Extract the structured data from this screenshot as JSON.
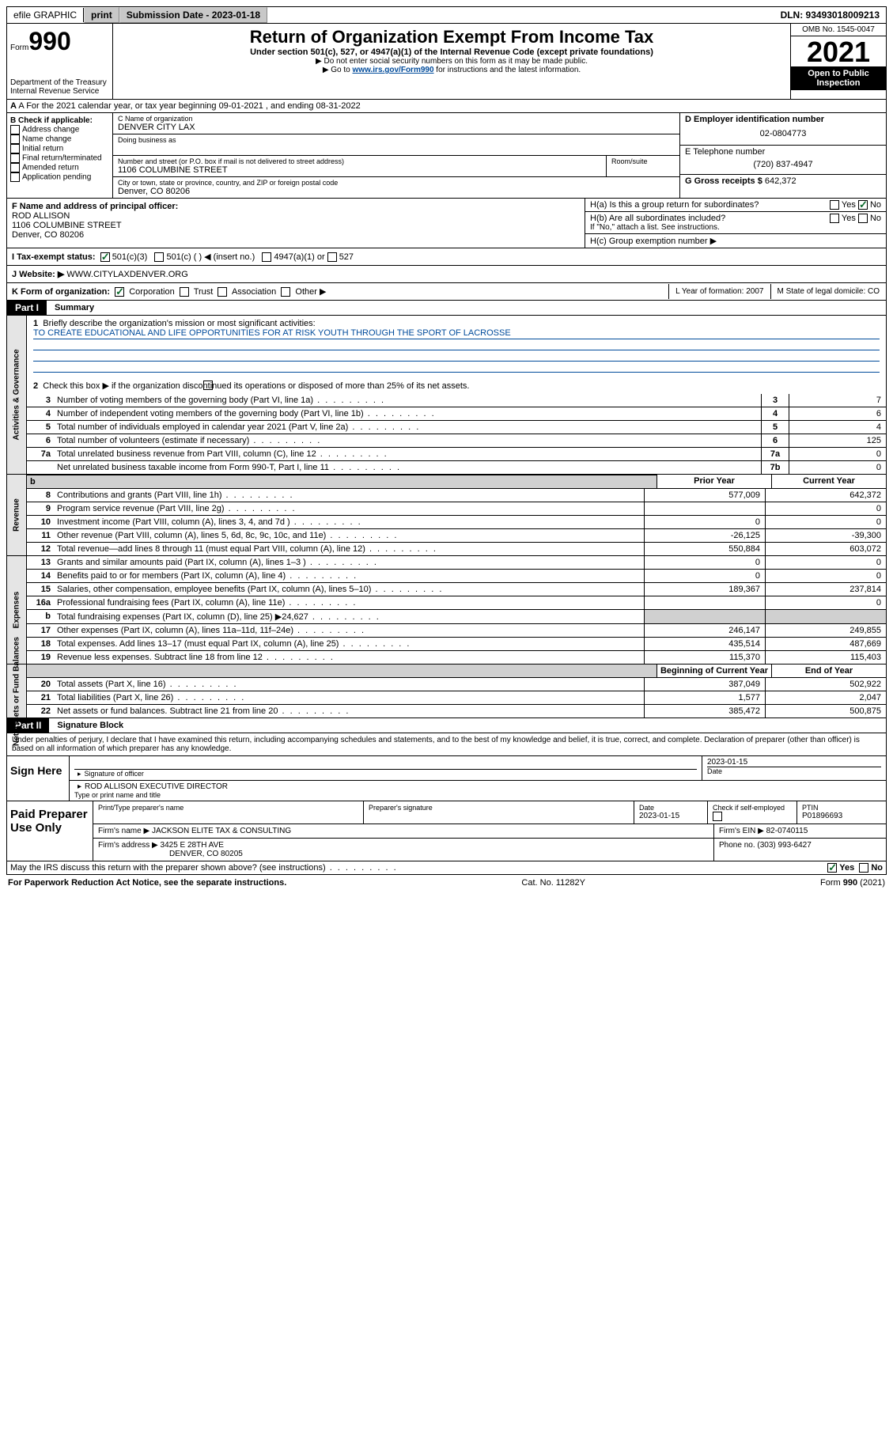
{
  "topbar": {
    "efile": "efile GRAPHIC",
    "print": "print",
    "submission": "Submission Date - 2023-01-18",
    "dln": "DLN: 93493018009213"
  },
  "header": {
    "form_prefix": "Form",
    "form_num": "990",
    "dept": "Department of the Treasury Internal Revenue Service",
    "title": "Return of Organization Exempt From Income Tax",
    "sub": "Under section 501(c), 527, or 4947(a)(1) of the Internal Revenue Code (except private foundations)",
    "note1": "▶ Do not enter social security numbers on this form as it may be made public.",
    "note2_pre": "▶ Go to ",
    "note2_link": "www.irs.gov/Form990",
    "note2_post": " for instructions and the latest information.",
    "omb": "OMB No. 1545-0047",
    "year": "2021",
    "open": "Open to Public Inspection"
  },
  "rowA": "A For the 2021 calendar year, or tax year beginning 09-01-2021   , and ending 08-31-2022",
  "boxB": {
    "title": "B Check if applicable:",
    "items": [
      "Address change",
      "Name change",
      "Initial return",
      "Final return/terminated",
      "Amended return",
      "Application pending"
    ]
  },
  "boxC": {
    "name_label": "C Name of organization",
    "name": "DENVER CITY LAX",
    "dba_label": "Doing business as",
    "addr_label": "Number and street (or P.O. box if mail is not delivered to street address)",
    "room_label": "Room/suite",
    "addr": "1106 COLUMBINE STREET",
    "city_label": "City or town, state or province, country, and ZIP or foreign postal code",
    "city": "Denver, CO  80206"
  },
  "boxD": {
    "label": "D Employer identification number",
    "value": "02-0804773"
  },
  "boxE": {
    "label": "E Telephone number",
    "value": "(720) 837-4947"
  },
  "boxG": {
    "label": "G Gross receipts $",
    "value": "642,372"
  },
  "boxF": {
    "label": "F Name and address of principal officer:",
    "name": "ROD ALLISON",
    "addr1": "1106 COLUMBINE STREET",
    "addr2": "Denver, CO  80206"
  },
  "boxH": {
    "a": "H(a)  Is this a group return for subordinates?",
    "b": "H(b)  Are all subordinates included?",
    "note": "If \"No,\" attach a list. See instructions.",
    "c": "H(c)  Group exemption number ▶"
  },
  "taxI": {
    "label": "I   Tax-exempt status:",
    "o1": "501(c)(3)",
    "o2": "501(c) (  ) ◀ (insert no.)",
    "o3": "4947(a)(1) or",
    "o4": "527"
  },
  "webJ": {
    "label": "J   Website: ▶",
    "value": "WWW.CITYLAXDENVER.ORG"
  },
  "rowK": {
    "label": "K Form of organization:",
    "o1": "Corporation",
    "o2": "Trust",
    "o3": "Association",
    "o4": "Other ▶",
    "L": "L Year of formation: 2007",
    "M": "M State of legal domicile: CO"
  },
  "part1": {
    "bar": "Part I",
    "title": "Summary",
    "q1": "Briefly describe the organization's mission or most significant activities:",
    "mission": "TO CREATE EDUCATIONAL AND LIFE OPPORTUNITIES FOR AT RISK YOUTH THROUGH THE SPORT OF LACROSSE",
    "q2": "Check this box ▶        if the organization discontinued its operations or disposed of more than 25% of its net assets."
  },
  "gov_lines": [
    {
      "n": "3",
      "t": "Number of voting members of the governing body (Part VI, line 1a)",
      "b": "3",
      "v": "7"
    },
    {
      "n": "4",
      "t": "Number of independent voting members of the governing body (Part VI, line 1b)",
      "b": "4",
      "v": "6"
    },
    {
      "n": "5",
      "t": "Total number of individuals employed in calendar year 2021 (Part V, line 2a)",
      "b": "5",
      "v": "4"
    },
    {
      "n": "6",
      "t": "Total number of volunteers (estimate if necessary)",
      "b": "6",
      "v": "125"
    },
    {
      "n": "7a",
      "t": "Total unrelated business revenue from Part VIII, column (C), line 12",
      "b": "7a",
      "v": "0"
    },
    {
      "n": "",
      "t": "Net unrelated business taxable income from Form 990-T, Part I, line 11",
      "b": "7b",
      "v": "0"
    }
  ],
  "rev_hdr": {
    "prior": "Prior Year",
    "curr": "Current Year"
  },
  "rev_lines": [
    {
      "n": "8",
      "t": "Contributions and grants (Part VIII, line 1h)",
      "p": "577,009",
      "c": "642,372"
    },
    {
      "n": "9",
      "t": "Program service revenue (Part VIII, line 2g)",
      "p": "",
      "c": "0"
    },
    {
      "n": "10",
      "t": "Investment income (Part VIII, column (A), lines 3, 4, and 7d )",
      "p": "0",
      "c": "0"
    },
    {
      "n": "11",
      "t": "Other revenue (Part VIII, column (A), lines 5, 6d, 8c, 9c, 10c, and 11e)",
      "p": "-26,125",
      "c": "-39,300"
    },
    {
      "n": "12",
      "t": "Total revenue—add lines 8 through 11 (must equal Part VIII, column (A), line 12)",
      "p": "550,884",
      "c": "603,072"
    }
  ],
  "exp_lines": [
    {
      "n": "13",
      "t": "Grants and similar amounts paid (Part IX, column (A), lines 1–3 )",
      "p": "0",
      "c": "0"
    },
    {
      "n": "14",
      "t": "Benefits paid to or for members (Part IX, column (A), line 4)",
      "p": "0",
      "c": "0"
    },
    {
      "n": "15",
      "t": "Salaries, other compensation, employee benefits (Part IX, column (A), lines 5–10)",
      "p": "189,367",
      "c": "237,814"
    },
    {
      "n": "16a",
      "t": "Professional fundraising fees (Part IX, column (A), line 11e)",
      "p": "",
      "c": "0"
    },
    {
      "n": "b",
      "t": "Total fundraising expenses (Part IX, column (D), line 25) ▶24,627",
      "p": "grey",
      "c": "grey"
    },
    {
      "n": "17",
      "t": "Other expenses (Part IX, column (A), lines 11a–11d, 11f–24e)",
      "p": "246,147",
      "c": "249,855"
    },
    {
      "n": "18",
      "t": "Total expenses. Add lines 13–17 (must equal Part IX, column (A), line 25)",
      "p": "435,514",
      "c": "487,669"
    },
    {
      "n": "19",
      "t": "Revenue less expenses. Subtract line 18 from line 12",
      "p": "115,370",
      "c": "115,403"
    }
  ],
  "net_hdr": {
    "prior": "Beginning of Current Year",
    "curr": "End of Year"
  },
  "net_lines": [
    {
      "n": "20",
      "t": "Total assets (Part X, line 16)",
      "p": "387,049",
      "c": "502,922"
    },
    {
      "n": "21",
      "t": "Total liabilities (Part X, line 26)",
      "p": "1,577",
      "c": "2,047"
    },
    {
      "n": "22",
      "t": "Net assets or fund balances. Subtract line 21 from line 20",
      "p": "385,472",
      "c": "500,875"
    }
  ],
  "part2": {
    "bar": "Part II",
    "title": "Signature Block",
    "decl": "Under penalties of perjury, I declare that I have examined this return, including accompanying schedules and statements, and to the best of my knowledge and belief, it is true, correct, and complete. Declaration of preparer (other than officer) is based on all information of which preparer has any knowledge."
  },
  "sign": {
    "here": "Sign Here",
    "sig_label": "Signature of officer",
    "date_label": "Date",
    "date": "2023-01-15",
    "name_label": "Type or print name and title",
    "name": "ROD ALLISON  EXECUTIVE DIRECTOR"
  },
  "prep": {
    "title": "Paid Preparer Use Only",
    "h1": "Print/Type preparer's name",
    "h2": "Preparer's signature",
    "h3": "Date",
    "date": "2023-01-15",
    "h4": "Check        if self-employed",
    "h5": "PTIN",
    "ptin": "P01896693",
    "firm_label": "Firm's name     ▶",
    "firm": "JACKSON ELITE TAX & CONSULTING",
    "ein_label": "Firm's EIN ▶",
    "ein": "82-0740115",
    "addr_label": "Firm's address ▶",
    "addr1": "3425 E 28TH AVE",
    "addr2": "DENVER, CO  80205",
    "phone_label": "Phone no.",
    "phone": "(303) 993-6427"
  },
  "discuss": "May the IRS discuss this return with the preparer shown above? (see instructions)",
  "footer": {
    "left": "For Paperwork Reduction Act Notice, see the separate instructions.",
    "mid": "Cat. No. 11282Y",
    "right_pre": "Form ",
    "right_b": "990",
    "right_post": " (2021)"
  },
  "side_tabs": {
    "gov": "Activities & Governance",
    "rev": "Revenue",
    "exp": "Expenses",
    "net": "Net Assets or Fund Balances"
  }
}
